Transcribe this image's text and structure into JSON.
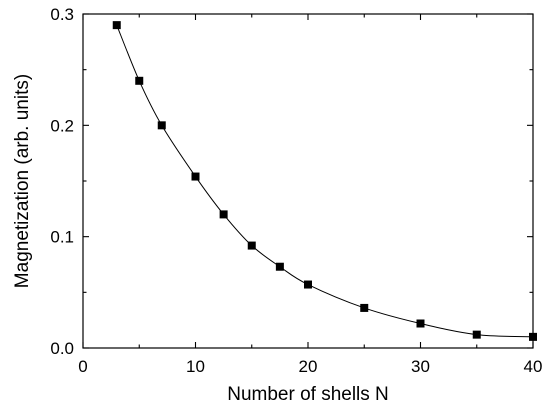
{
  "chart_data": {
    "type": "line",
    "title": "",
    "xlabel": "Number of shells N",
    "ylabel": "Magnetization (arb. units)",
    "xlim": [
      0,
      40
    ],
    "ylim": [
      0.0,
      0.3
    ],
    "x_ticks": [
      0,
      10,
      20,
      30,
      40
    ],
    "x_tick_labels": [
      "0",
      "10",
      "20",
      "30",
      "40"
    ],
    "y_ticks": [
      0.0,
      0.1,
      0.2,
      0.3
    ],
    "y_tick_labels": [
      "0.0",
      "0.1",
      "0.2",
      "0.3"
    ],
    "grid": false,
    "legend": "none",
    "marker": "square",
    "series": [
      {
        "x": [
          3,
          5,
          7,
          10,
          12.5,
          15,
          17.5,
          20,
          25,
          30,
          35,
          40
        ],
        "y": [
          0.29,
          0.24,
          0.2,
          0.154,
          0.12,
          0.092,
          0.073,
          0.057,
          0.036,
          0.022,
          0.012,
          0.01
        ]
      }
    ]
  }
}
